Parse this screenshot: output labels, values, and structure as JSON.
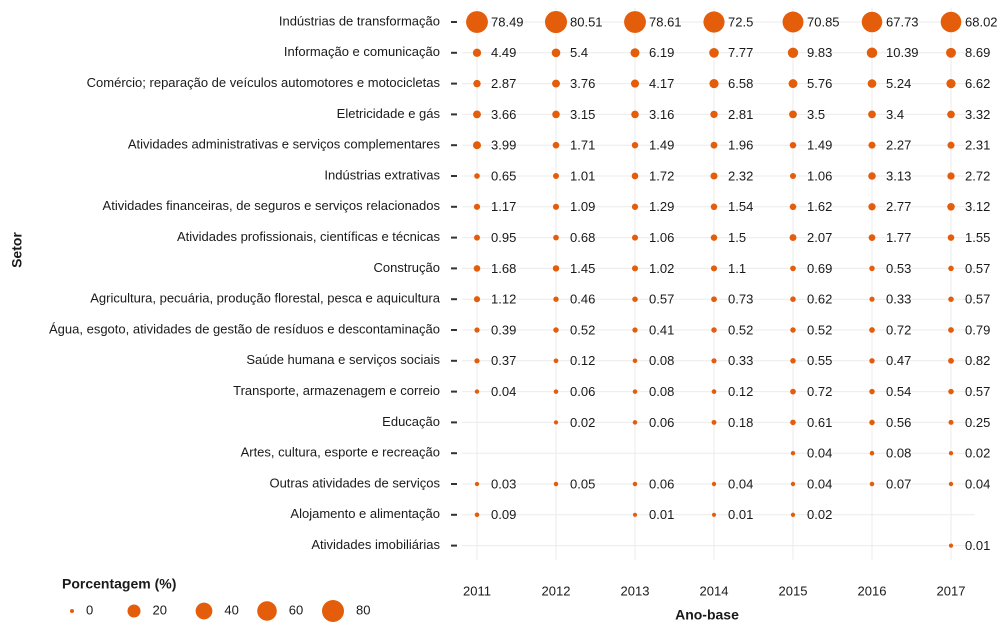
{
  "chart_data": {
    "type": "bubble",
    "x": [
      "2011",
      "2012",
      "2013",
      "2014",
      "2015",
      "2016",
      "2017"
    ],
    "xlabel": "Ano-base",
    "ylabel": "Setor",
    "color": "#e35d0b",
    "grid": true,
    "size_legend": {
      "title": "Porcentagem (%)",
      "values": [
        0,
        20,
        40,
        60,
        80
      ]
    },
    "series": [
      {
        "name": "Indústrias de transformação",
        "values": [
          78.49,
          80.51,
          78.61,
          72.5,
          70.85,
          67.73,
          68.02
        ]
      },
      {
        "name": "Informação e comunicação",
        "values": [
          4.49,
          5.4,
          6.19,
          7.77,
          9.83,
          10.39,
          8.69
        ]
      },
      {
        "name": "Comércio; reparação de veículos automotores e motocicletas",
        "values": [
          2.87,
          3.76,
          4.17,
          6.58,
          5.76,
          5.24,
          6.62
        ]
      },
      {
        "name": "Eletricidade e gás",
        "values": [
          3.66,
          3.15,
          3.16,
          2.81,
          3.5,
          3.4,
          3.32
        ]
      },
      {
        "name": "Atividades administrativas e serviços complementares",
        "values": [
          3.99,
          1.71,
          1.49,
          1.96,
          1.49,
          2.27,
          2.31
        ]
      },
      {
        "name": "Indústrias extrativas",
        "values": [
          0.65,
          1.01,
          1.72,
          2.32,
          1.06,
          3.13,
          2.72
        ]
      },
      {
        "name": "Atividades financeiras, de seguros e serviços relacionados",
        "values": [
          1.17,
          1.09,
          1.29,
          1.54,
          1.62,
          2.77,
          3.12
        ]
      },
      {
        "name": "Atividades profissionais, científicas e técnicas",
        "values": [
          0.95,
          0.68,
          1.06,
          1.5,
          2.07,
          1.77,
          1.55
        ]
      },
      {
        "name": "Construção",
        "values": [
          1.68,
          1.45,
          1.02,
          1.1,
          0.69,
          0.53,
          0.57
        ]
      },
      {
        "name": "Agricultura, pecuária, produção florestal, pesca e aquicultura",
        "values": [
          1.12,
          0.46,
          0.57,
          0.73,
          0.62,
          0.33,
          0.57
        ]
      },
      {
        "name": "Água, esgoto, atividades de gestão de resíduos e descontaminação",
        "values": [
          0.39,
          0.52,
          0.41,
          0.52,
          0.52,
          0.72,
          0.79
        ]
      },
      {
        "name": "Saúde humana e serviços sociais",
        "values": [
          0.37,
          0.12,
          0.08,
          0.33,
          0.55,
          0.47,
          0.82
        ]
      },
      {
        "name": "Transporte, armazenagem e correio",
        "values": [
          0.04,
          0.06,
          0.08,
          0.12,
          0.72,
          0.54,
          0.57
        ]
      },
      {
        "name": "Educação",
        "values": [
          null,
          0.02,
          0.06,
          0.18,
          0.61,
          0.56,
          0.25
        ]
      },
      {
        "name": "Artes, cultura, esporte e recreação",
        "values": [
          null,
          null,
          null,
          null,
          0.04,
          0.08,
          0.02
        ]
      },
      {
        "name": "Outras atividades de serviços",
        "values": [
          0.03,
          0.05,
          0.06,
          0.04,
          0.04,
          0.07,
          0.04
        ]
      },
      {
        "name": "Alojamento e alimentação",
        "values": [
          0.09,
          null,
          0.01,
          0.01,
          0.02,
          null,
          null
        ]
      },
      {
        "name": "Atividades imobiliárias",
        "values": [
          null,
          null,
          null,
          null,
          null,
          null,
          0.01
        ]
      }
    ]
  }
}
